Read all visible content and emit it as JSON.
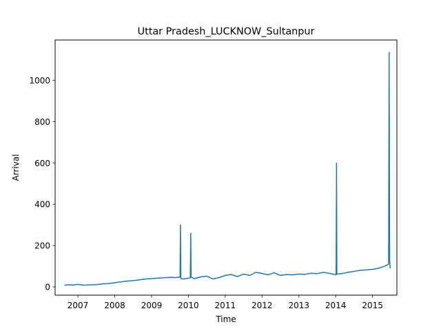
{
  "chart_data": {
    "type": "line",
    "title": "Uttar Pradesh_LUCKNOW_Sultanpur",
    "xlabel": "Time",
    "ylabel": "Arrival",
    "x_axis": "date",
    "xlim": [
      "2006-05-20",
      "2015-08-31"
    ],
    "ylim": [
      -40,
      1195
    ],
    "x_ticks": [
      "2007",
      "2008",
      "2009",
      "2010",
      "2011",
      "2012",
      "2013",
      "2014",
      "2015"
    ],
    "y_ticks": [
      0,
      200,
      400,
      600,
      800,
      1000
    ],
    "grid": false,
    "legend": "none",
    "color": "#1f77b4",
    "series": [
      {
        "x": [
          "2006-08-20",
          "2006-10-01",
          "2006-11-15",
          "2007-01-01",
          "2007-03-01",
          "2007-05-01",
          "2007-07-01",
          "2007-09-01",
          "2007-11-01",
          "2008-01-01",
          "2008-03-01",
          "2008-05-01",
          "2008-07-01",
          "2008-09-01",
          "2008-11-01",
          "2009-01-01",
          "2009-03-01",
          "2009-05-01",
          "2009-07-01",
          "2009-09-01",
          "2009-10-10",
          "2009-10-14",
          "2009-10-18",
          "2009-11-15",
          "2010-01-05",
          "2010-01-20",
          "2010-01-24",
          "2010-01-28",
          "2010-03-01",
          "2010-05-01",
          "2010-07-01",
          "2010-09-01",
          "2010-11-01",
          "2011-01-01",
          "2011-03-01",
          "2011-05-01",
          "2011-07-01",
          "2011-09-01",
          "2011-11-01",
          "2012-01-01",
          "2012-03-01",
          "2012-05-01",
          "2012-07-01",
          "2012-09-01",
          "2012-11-01",
          "2013-01-01",
          "2013-03-01",
          "2013-05-01",
          "2013-07-01",
          "2013-09-01",
          "2013-11-01",
          "2013-12-20",
          "2014-01-05",
          "2014-01-09",
          "2014-01-13",
          "2014-03-01",
          "2014-05-01",
          "2014-07-01",
          "2014-09-01",
          "2014-11-01",
          "2015-01-01",
          "2015-03-01",
          "2015-05-01",
          "2015-06-10",
          "2015-06-15",
          "2015-06-20",
          "2015-06-25"
        ],
        "values": [
          8,
          10,
          9,
          12,
          8,
          10,
          11,
          14,
          16,
          20,
          24,
          28,
          30,
          34,
          38,
          40,
          42,
          44,
          46,
          45,
          48,
          300,
          40,
          38,
          42,
          44,
          260,
          46,
          40,
          48,
          52,
          38,
          45,
          55,
          60,
          50,
          62,
          55,
          70,
          65,
          58,
          68,
          55,
          60,
          58,
          62,
          60,
          66,
          64,
          70,
          65,
          60,
          58,
          600,
          62,
          64,
          70,
          75,
          80,
          82,
          85,
          90,
          100,
          110,
          1135,
          120,
          90
        ]
      }
    ]
  }
}
